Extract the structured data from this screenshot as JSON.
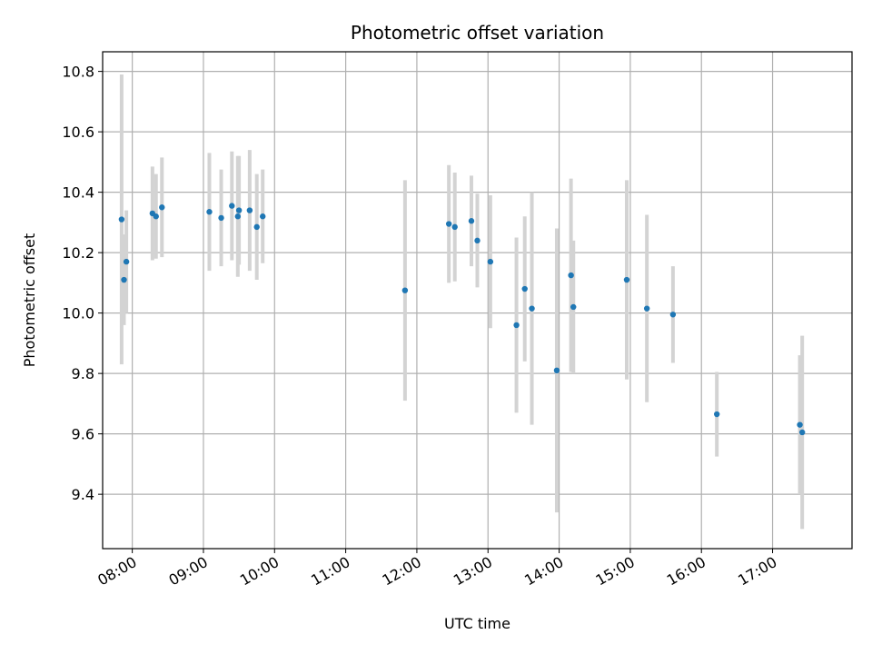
{
  "chart_data": {
    "type": "scatter",
    "title": "Photometric offset variation",
    "xlabel": "UTC time",
    "ylabel": "Photometric offset",
    "xlim": [
      "07:35",
      "18:07"
    ],
    "ylim": [
      9.22,
      10.865
    ],
    "x_ticks": [
      "08:00",
      "09:00",
      "10:00",
      "11:00",
      "12:00",
      "13:00",
      "14:00",
      "15:00",
      "16:00",
      "17:00"
    ],
    "y_ticks": [
      9.4,
      9.6,
      9.8,
      10.0,
      10.2,
      10.4,
      10.6,
      10.8
    ],
    "grid": true,
    "point_color": "#1f77b4",
    "errorbar_color": "#d3d3d3",
    "series": [
      {
        "points": [
          {
            "x": "07:51",
            "y": 10.31,
            "yerr": 0.48
          },
          {
            "x": "07:53",
            "y": 10.11,
            "yerr": 0.15
          },
          {
            "x": "07:55",
            "y": 10.17,
            "yerr": 0.17
          },
          {
            "x": "08:17",
            "y": 10.33,
            "yerr": 0.155
          },
          {
            "x": "08:20",
            "y": 10.32,
            "yerr": 0.14
          },
          {
            "x": "08:25",
            "y": 10.35,
            "yerr": 0.165
          },
          {
            "x": "09:05",
            "y": 10.335,
            "yerr": 0.195
          },
          {
            "x": "09:15",
            "y": 10.315,
            "yerr": 0.16
          },
          {
            "x": "09:24",
            "y": 10.355,
            "yerr": 0.18
          },
          {
            "x": "09:29",
            "y": 10.32,
            "yerr": 0.2
          },
          {
            "x": "09:30",
            "y": 10.34,
            "yerr": 0.18
          },
          {
            "x": "09:39",
            "y": 10.34,
            "yerr": 0.2
          },
          {
            "x": "09:45",
            "y": 10.285,
            "yerr": 0.175
          },
          {
            "x": "09:50",
            "y": 10.32,
            "yerr": 0.155
          },
          {
            "x": "11:50",
            "y": 10.075,
            "yerr": 0.365
          },
          {
            "x": "12:27",
            "y": 10.295,
            "yerr": 0.195
          },
          {
            "x": "12:32",
            "y": 10.285,
            "yerr": 0.18
          },
          {
            "x": "12:46",
            "y": 10.305,
            "yerr": 0.15
          },
          {
            "x": "12:51",
            "y": 10.24,
            "yerr": 0.155
          },
          {
            "x": "13:02",
            "y": 10.17,
            "yerr": 0.22
          },
          {
            "x": "13:24",
            "y": 9.96,
            "yerr": 0.29
          },
          {
            "x": "13:31",
            "y": 10.08,
            "yerr": 0.24
          },
          {
            "x": "13:37",
            "y": 10.015,
            "yerr": 0.385
          },
          {
            "x": "13:58",
            "y": 9.81,
            "yerr": 0.47
          },
          {
            "x": "14:10",
            "y": 10.125,
            "yerr": 0.32
          },
          {
            "x": "14:12",
            "y": 10.02,
            "yerr": 0.22
          },
          {
            "x": "14:57",
            "y": 10.11,
            "yerr": 0.33
          },
          {
            "x": "15:14",
            "y": 10.015,
            "yerr": 0.31
          },
          {
            "x": "15:36",
            "y": 9.995,
            "yerr": 0.16
          },
          {
            "x": "16:13",
            "y": 9.665,
            "yerr": 0.14
          },
          {
            "x": "17:23",
            "y": 9.63,
            "yerr": 0.23
          },
          {
            "x": "17:25",
            "y": 9.605,
            "yerr": 0.32
          }
        ]
      }
    ]
  }
}
